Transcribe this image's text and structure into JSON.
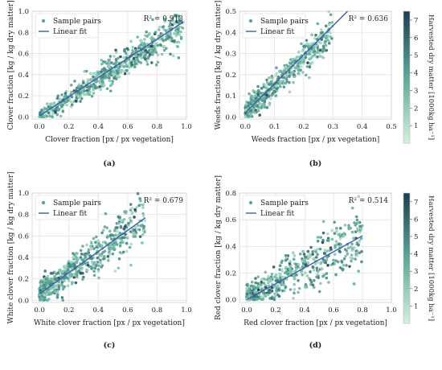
{
  "colors": {
    "fit_line": "#3b5ea8",
    "scale_low": "#d4f2dc",
    "scale_mid": "#5aa898",
    "scale_high": "#1f3b50"
  },
  "chart_data": [
    {
      "type": "scatter",
      "panel": "(a)",
      "xlabel": "Clover fraction [px / px vegetation]",
      "ylabel": "Clover fraction [kg / kg dry matter]",
      "xlim": [
        -0.05,
        1.0
      ],
      "ylim": [
        -0.02,
        1.0
      ],
      "xticks": [
        "0.0",
        "0.2",
        "0.4",
        "0.6",
        "0.8",
        "1.0"
      ],
      "yticks": [
        "0.0",
        "0.2",
        "0.4",
        "0.6",
        "0.8",
        "1.0"
      ],
      "r2": "R² = 0.913",
      "legend": [
        "Sample pairs",
        "Linear fit"
      ],
      "legend_position": "top-left",
      "grid": true,
      "fit": {
        "x": [
          0.0,
          0.97
        ],
        "y": [
          0.01,
          0.89
        ]
      },
      "sample_pairs_estimate": {
        "count": 620,
        "slope": 0.9,
        "intercept": 0.0,
        "noise": 0.065,
        "x_range": [
          0.0,
          0.98
        ]
      }
    },
    {
      "type": "scatter",
      "panel": "(b)",
      "xlabel": "Weeds fraction [px / px vegetation]",
      "ylabel": "Weeds fraction [kg / kg dry matter]",
      "xlim": [
        -0.02,
        0.5
      ],
      "ylim": [
        -0.01,
        0.5
      ],
      "xticks": [
        "0.0",
        "0.1",
        "0.2",
        "0.3",
        "0.4",
        "0.5"
      ],
      "yticks": [
        "0.0",
        "0.1",
        "0.2",
        "0.3",
        "0.4",
        "0.5"
      ],
      "r2": "R² = 0.636",
      "legend": [
        "Sample pairs",
        "Linear fit"
      ],
      "legend_position": "top-left",
      "grid": true,
      "fit": {
        "x": [
          0.0,
          0.35
        ],
        "y": [
          0.02,
          0.5
        ]
      },
      "sample_pairs_estimate": {
        "count": 520,
        "slope": 1.3,
        "intercept": 0.02,
        "noise": 0.05,
        "x_range": [
          0.0,
          0.3
        ]
      },
      "colorbar": {
        "label": "Harvested dry matter [1000kg ha⁻¹]",
        "ticks": [
          "1",
          "2",
          "3",
          "4",
          "5",
          "6",
          "7"
        ],
        "range": [
          0.0,
          7.5
        ]
      }
    },
    {
      "type": "scatter",
      "panel": "(c)",
      "xlabel": "White clover fraction [px / px vegetation]",
      "ylabel": "White clover fraction [kg / kg dry matter]",
      "xlim": [
        -0.05,
        1.0
      ],
      "ylim": [
        -0.02,
        1.0
      ],
      "xticks": [
        "0.0",
        "0.2",
        "0.4",
        "0.6",
        "0.8",
        "1.0"
      ],
      "yticks": [
        "0.0",
        "0.2",
        "0.4",
        "0.6",
        "0.8",
        "1.0"
      ],
      "r2": "R² = 0.679",
      "legend": [
        "Sample pairs",
        "Linear fit"
      ],
      "legend_position": "top-left",
      "grid": true,
      "fit": {
        "x": [
          0.0,
          0.72
        ],
        "y": [
          0.06,
          0.77
        ]
      },
      "sample_pairs_estimate": {
        "count": 600,
        "slope": 0.98,
        "intercept": 0.06,
        "noise": 0.1,
        "x_range": [
          0.0,
          0.72
        ]
      }
    },
    {
      "type": "scatter",
      "panel": "(d)",
      "xlabel": "Red clover fraction [px / px vegetation]",
      "ylabel": "Red clover fraction [kg / kg dry matter]",
      "xlim": [
        -0.05,
        1.0
      ],
      "ylim": [
        -0.02,
        0.8
      ],
      "xticks": [
        "0.0",
        "0.2",
        "0.4",
        "0.6",
        "0.8",
        "1.0"
      ],
      "yticks": [
        "0.0",
        "0.2",
        "0.4",
        "0.6",
        "0.8"
      ],
      "r2": "R² = 0.514",
      "legend": [
        "Sample pairs",
        "Linear fit"
      ],
      "legend_position": "top-left",
      "grid": true,
      "fit": {
        "x": [
          0.0,
          0.8
        ],
        "y": [
          0.0,
          0.48
        ]
      },
      "sample_pairs_estimate": {
        "count": 560,
        "slope": 0.6,
        "intercept": 0.0,
        "noise": 0.1,
        "x_range": [
          0.0,
          0.8
        ]
      },
      "colorbar": {
        "label": "Harvested dry matter [1000kg ha⁻¹]",
        "ticks": [
          "1",
          "2",
          "3",
          "4",
          "5",
          "6",
          "7"
        ],
        "range": [
          0.0,
          7.5
        ]
      }
    }
  ]
}
